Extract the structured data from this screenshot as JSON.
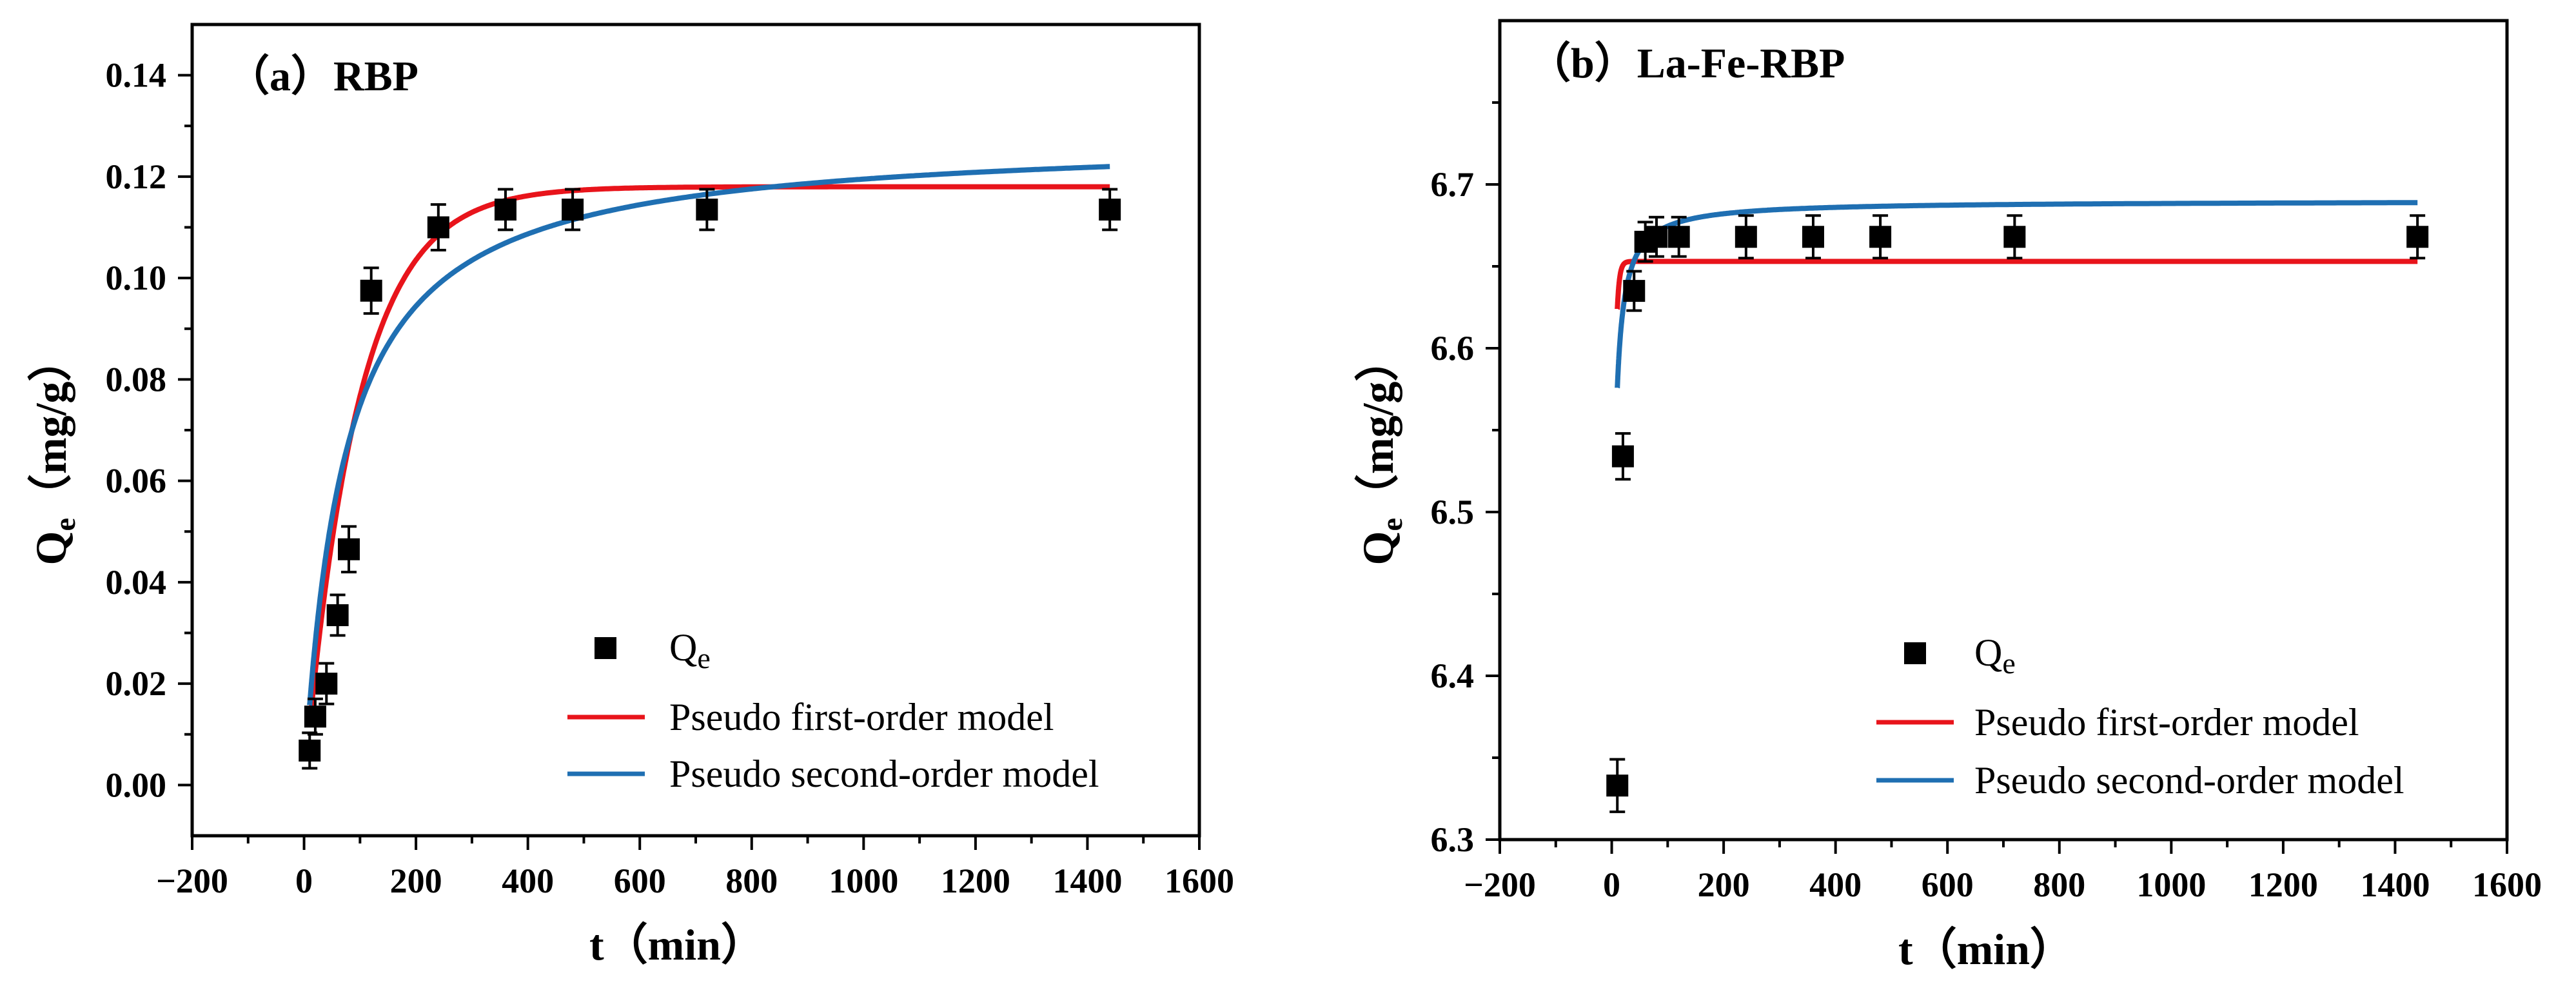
{
  "chart_data": [
    {
      "type": "scatter",
      "title": "（a）RBP",
      "xlabel": "t（min）",
      "ylabel": "Qe（mg/g）",
      "ylabel_main": "Q",
      "ylabel_sub": "e",
      "ylabel_unit": "（mg/g）",
      "xlim": [
        -200,
        1600
      ],
      "ylim": [
        -0.01,
        0.15
      ],
      "x_ticks": [
        -200,
        0,
        200,
        400,
        600,
        800,
        1000,
        1200,
        1400,
        1600
      ],
      "x_tick_labels": [
        "−200",
        "0",
        "200",
        "400",
        "600",
        "800",
        "1000",
        "1200",
        "1400",
        "1600"
      ],
      "y_ticks": [
        0,
        0.02,
        0.04,
        0.06,
        0.08,
        0.1,
        0.12,
        0.14
      ],
      "y_tick_labels": [
        "0.00",
        "0.02",
        "0.04",
        "0.06",
        "0.08",
        "0.10",
        "0.12",
        "0.14"
      ],
      "legend": {
        "position": "bottom-right",
        "entries": [
          {
            "label_main": "Q",
            "label_sub": "e"
          },
          {
            "label": "Pseudo first-order model"
          },
          {
            "label": "Pseudo second-order model"
          }
        ]
      },
      "series": [
        {
          "name": "Qe",
          "kind": "points",
          "color": "#000000",
          "x": [
            10,
            20,
            40,
            60,
            80,
            120,
            240,
            360,
            480,
            720,
            1440
          ],
          "y": [
            0.0068,
            0.0135,
            0.02,
            0.0335,
            0.0465,
            0.0975,
            0.11,
            0.1135,
            0.1135,
            0.1135,
            0.1135
          ],
          "err": [
            0.0035,
            0.0035,
            0.004,
            0.004,
            0.0045,
            0.0045,
            0.0045,
            0.004,
            0.004,
            0.004,
            0.004
          ]
        },
        {
          "name": "Pseudo first-order model",
          "kind": "pfo",
          "color": "#e8141b",
          "qe": 0.118,
          "k": 0.0105,
          "xrange": [
            10,
            1440
          ]
        },
        {
          "name": "Pseudo second-order model",
          "kind": "pso",
          "color": "#1f6fb2",
          "qe": 0.128,
          "k": 0.11,
          "xrange": [
            10,
            1440
          ]
        }
      ]
    },
    {
      "type": "scatter",
      "title": "（b）La-Fe-RBP",
      "xlabel": "t（min）",
      "ylabel": "Qe（mg/g）",
      "ylabel_main": "Q",
      "ylabel_sub": "e",
      "ylabel_unit": "（mg/g）",
      "xlim": [
        -200,
        1600
      ],
      "ylim": [
        6.3,
        6.8
      ],
      "x_ticks": [
        -200,
        0,
        200,
        400,
        600,
        800,
        1000,
        1200,
        1400,
        1600
      ],
      "x_tick_labels": [
        "−200",
        "0",
        "200",
        "400",
        "600",
        "800",
        "1000",
        "1200",
        "1400",
        "1600"
      ],
      "y_ticks": [
        6.3,
        6.4,
        6.5,
        6.6,
        6.7
      ],
      "y_tick_labels": [
        "6.3",
        "6.4",
        "6.5",
        "6.6",
        "6.7"
      ],
      "legend": {
        "position": "bottom-right",
        "entries": [
          {
            "label_main": "Q",
            "label_sub": "e"
          },
          {
            "label": "Pseudo first-order model"
          },
          {
            "label": "Pseudo second-order model"
          }
        ]
      },
      "series": [
        {
          "name": "Qe",
          "kind": "points",
          "color": "#000000",
          "x": [
            10,
            20,
            40,
            60,
            80,
            120,
            240,
            360,
            480,
            720,
            1440
          ],
          "y": [
            6.333,
            6.534,
            6.635,
            6.665,
            6.668,
            6.668,
            6.668,
            6.668,
            6.668,
            6.668,
            6.668
          ],
          "err": [
            0.016,
            0.014,
            0.012,
            0.012,
            0.012,
            0.012,
            0.013,
            0.013,
            0.013,
            0.013,
            0.013
          ]
        },
        {
          "name": "Pseudo first-order model",
          "kind": "pfo",
          "color": "#e8141b",
          "base": 6.3,
          "qe": 0.353,
          "k": 0.25,
          "xrange": [
            10,
            1440
          ]
        },
        {
          "name": "Pseudo second-order model",
          "kind": "pso",
          "color": "#1f6fb2",
          "base": 6.3,
          "qe": 0.39,
          "k": 0.62,
          "xrange": [
            10,
            1440
          ]
        }
      ]
    }
  ]
}
